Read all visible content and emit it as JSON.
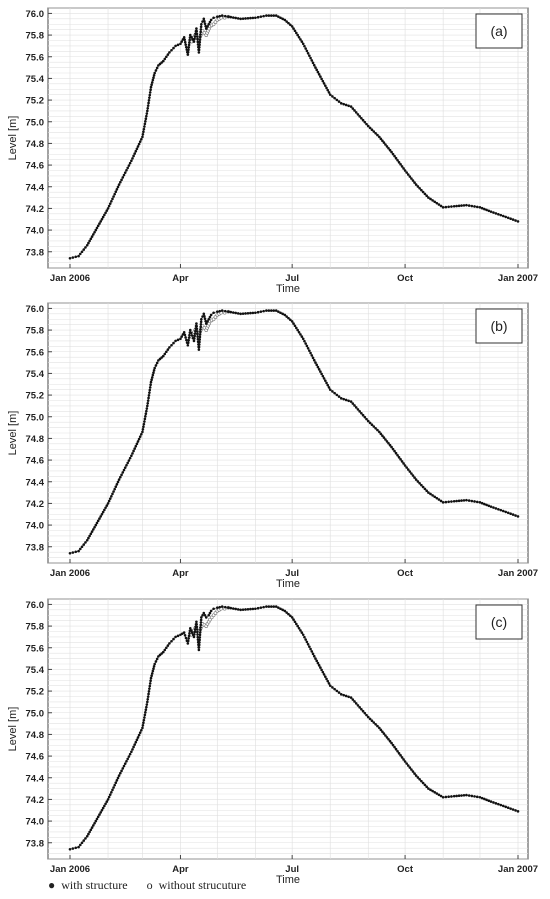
{
  "chart_data": [
    {
      "type": "scatter",
      "panel_label": "(a)",
      "xlabel": "Time",
      "ylabel": "Level [m]",
      "ylim": [
        73.65,
        76.05
      ],
      "xlim": [
        "2006-01-01",
        "2007-01-01"
      ],
      "x_ticks": [
        {
          "date": "2006-01-01",
          "label": "Jan 2006"
        },
        {
          "date": "2006-04-01",
          "label": "Apr"
        },
        {
          "date": "2006-07-01",
          "label": "Jul"
        },
        {
          "date": "2006-10-01",
          "label": "Oct"
        },
        {
          "date": "2007-01-01",
          "label": "Jan 2007"
        }
      ],
      "y_ticks": [
        "73.8",
        "74.0",
        "74.2",
        "74.4",
        "74.6",
        "74.8",
        "75.0",
        "75.2",
        "75.4",
        "75.6",
        "75.8",
        "76.0"
      ],
      "grid": true,
      "series": [
        {
          "name": "with structure",
          "marker": "filled",
          "x": [
            "2006-01-01",
            "2006-01-08",
            "2006-01-15",
            "2006-01-22",
            "2006-02-01",
            "2006-02-10",
            "2006-02-20",
            "2006-03-01",
            "2006-03-05",
            "2006-03-08",
            "2006-03-11",
            "2006-03-14",
            "2006-03-18",
            "2006-03-23",
            "2006-03-28",
            "2006-04-01",
            "2006-04-04",
            "2006-04-07",
            "2006-04-09",
            "2006-04-12",
            "2006-04-14",
            "2006-04-16",
            "2006-04-18",
            "2006-04-20",
            "2006-04-22",
            "2006-04-24",
            "2006-04-26",
            "2006-04-28",
            "2006-05-01",
            "2006-05-05",
            "2006-05-10",
            "2006-05-20",
            "2006-06-01",
            "2006-06-10",
            "2006-06-18",
            "2006-06-25",
            "2006-07-01",
            "2006-07-10",
            "2006-07-20",
            "2006-08-01",
            "2006-08-10",
            "2006-08-18",
            "2006-08-25",
            "2006-09-01",
            "2006-09-10",
            "2006-09-20",
            "2006-10-01",
            "2006-10-10",
            "2006-10-20",
            "2006-11-01",
            "2006-11-10",
            "2006-11-20",
            "2006-12-01",
            "2006-12-10",
            "2006-12-20",
            "2007-01-01"
          ],
          "y": [
            73.74,
            73.76,
            73.86,
            74.0,
            74.2,
            74.42,
            74.64,
            74.86,
            75.1,
            75.32,
            75.45,
            75.52,
            75.56,
            75.64,
            75.7,
            75.72,
            75.78,
            75.62,
            75.8,
            75.74,
            75.86,
            75.64,
            75.9,
            75.95,
            75.86,
            75.9,
            75.94,
            75.96,
            75.97,
            75.98,
            75.97,
            75.95,
            75.96,
            75.98,
            75.98,
            75.94,
            75.88,
            75.72,
            75.5,
            75.25,
            75.17,
            75.14,
            75.05,
            74.96,
            74.86,
            74.72,
            74.55,
            74.42,
            74.3,
            74.21,
            74.22,
            74.23,
            74.21,
            74.17,
            74.13,
            74.08
          ]
        },
        {
          "name": "without strucuture",
          "marker": "open",
          "x": [
            "2006-04-10",
            "2006-04-13",
            "2006-04-16",
            "2006-04-19",
            "2006-04-22",
            "2006-04-25",
            "2006-04-28",
            "2006-05-01",
            "2006-05-04",
            "2006-05-07",
            "2006-05-10"
          ],
          "y": [
            75.74,
            75.8,
            75.76,
            75.84,
            75.8,
            75.88,
            75.9,
            75.94,
            75.96,
            75.96,
            75.97
          ]
        }
      ]
    },
    {
      "type": "scatter",
      "panel_label": "(b)",
      "xlabel": "Time",
      "ylabel": "Level [m]",
      "ylim": [
        73.65,
        76.05
      ],
      "xlim": [
        "2006-01-01",
        "2007-01-01"
      ],
      "x_ticks": [
        {
          "date": "2006-01-01",
          "label": "Jan 2006"
        },
        {
          "date": "2006-04-01",
          "label": "Apr"
        },
        {
          "date": "2006-07-01",
          "label": "Jul"
        },
        {
          "date": "2006-10-01",
          "label": "Oct"
        },
        {
          "date": "2007-01-01",
          "label": "Jan 2007"
        }
      ],
      "y_ticks": [
        "73.8",
        "74.0",
        "74.2",
        "74.4",
        "74.6",
        "74.8",
        "75.0",
        "75.2",
        "75.4",
        "75.6",
        "75.8",
        "76.0"
      ],
      "grid": true,
      "series": [
        {
          "name": "with structure",
          "marker": "filled",
          "x": [
            "2006-01-01",
            "2006-01-08",
            "2006-01-15",
            "2006-01-22",
            "2006-02-01",
            "2006-02-10",
            "2006-02-20",
            "2006-03-01",
            "2006-03-05",
            "2006-03-08",
            "2006-03-11",
            "2006-03-14",
            "2006-03-18",
            "2006-03-23",
            "2006-03-28",
            "2006-04-01",
            "2006-04-04",
            "2006-04-07",
            "2006-04-09",
            "2006-04-12",
            "2006-04-14",
            "2006-04-16",
            "2006-04-18",
            "2006-04-20",
            "2006-04-22",
            "2006-04-24",
            "2006-04-26",
            "2006-04-28",
            "2006-05-01",
            "2006-05-05",
            "2006-05-10",
            "2006-05-20",
            "2006-06-01",
            "2006-06-10",
            "2006-06-18",
            "2006-06-25",
            "2006-07-01",
            "2006-07-10",
            "2006-07-20",
            "2006-08-01",
            "2006-08-10",
            "2006-08-18",
            "2006-08-25",
            "2006-09-01",
            "2006-09-10",
            "2006-09-20",
            "2006-10-01",
            "2006-10-10",
            "2006-10-20",
            "2006-11-01",
            "2006-11-10",
            "2006-11-20",
            "2006-12-01",
            "2006-12-10",
            "2006-12-20",
            "2007-01-01"
          ],
          "y": [
            73.74,
            73.76,
            73.86,
            74.0,
            74.2,
            74.42,
            74.64,
            74.86,
            75.1,
            75.32,
            75.45,
            75.52,
            75.56,
            75.64,
            75.7,
            75.72,
            75.78,
            75.66,
            75.8,
            75.7,
            75.86,
            75.62,
            75.9,
            75.95,
            75.86,
            75.9,
            75.94,
            75.96,
            75.97,
            75.98,
            75.97,
            75.95,
            75.96,
            75.98,
            75.98,
            75.94,
            75.88,
            75.72,
            75.5,
            75.25,
            75.17,
            75.14,
            75.05,
            74.96,
            74.86,
            74.72,
            74.55,
            74.42,
            74.3,
            74.21,
            74.22,
            74.23,
            74.21,
            74.17,
            74.13,
            74.08
          ]
        },
        {
          "name": "without strucuture",
          "marker": "open",
          "x": [
            "2006-04-10",
            "2006-04-13",
            "2006-04-16",
            "2006-04-19",
            "2006-04-22",
            "2006-04-25",
            "2006-04-28",
            "2006-05-01",
            "2006-05-04",
            "2006-05-07",
            "2006-05-10"
          ],
          "y": [
            75.74,
            75.8,
            75.76,
            75.84,
            75.8,
            75.88,
            75.9,
            75.94,
            75.96,
            75.96,
            75.97
          ]
        }
      ]
    },
    {
      "type": "scatter",
      "panel_label": "(c)",
      "xlabel": "Time",
      "ylabel": "Level [m]",
      "ylim": [
        73.65,
        76.05
      ],
      "xlim": [
        "2006-01-01",
        "2007-01-01"
      ],
      "x_ticks": [
        {
          "date": "2006-01-01",
          "label": "Jan 2006"
        },
        {
          "date": "2006-04-01",
          "label": "Apr"
        },
        {
          "date": "2006-07-01",
          "label": "Jul"
        },
        {
          "date": "2006-10-01",
          "label": "Oct"
        },
        {
          "date": "2007-01-01",
          "label": "Jan 2007"
        }
      ],
      "y_ticks": [
        "73.8",
        "74.0",
        "74.2",
        "74.4",
        "74.6",
        "74.8",
        "75.0",
        "75.2",
        "75.4",
        "75.6",
        "75.8",
        "76.0"
      ],
      "grid": true,
      "series": [
        {
          "name": "with structure",
          "marker": "filled",
          "x": [
            "2006-01-01",
            "2006-01-08",
            "2006-01-15",
            "2006-01-22",
            "2006-02-01",
            "2006-02-10",
            "2006-02-20",
            "2006-03-01",
            "2006-03-05",
            "2006-03-08",
            "2006-03-11",
            "2006-03-14",
            "2006-03-18",
            "2006-03-23",
            "2006-03-28",
            "2006-04-01",
            "2006-04-04",
            "2006-04-07",
            "2006-04-09",
            "2006-04-12",
            "2006-04-14",
            "2006-04-16",
            "2006-04-18",
            "2006-04-20",
            "2006-04-22",
            "2006-04-24",
            "2006-04-26",
            "2006-04-28",
            "2006-05-01",
            "2006-05-05",
            "2006-05-10",
            "2006-05-20",
            "2006-06-01",
            "2006-06-10",
            "2006-06-18",
            "2006-06-25",
            "2006-07-01",
            "2006-07-10",
            "2006-07-20",
            "2006-08-01",
            "2006-08-10",
            "2006-08-18",
            "2006-08-25",
            "2006-09-01",
            "2006-09-10",
            "2006-09-20",
            "2006-10-01",
            "2006-10-10",
            "2006-10-20",
            "2006-11-01",
            "2006-11-10",
            "2006-11-20",
            "2006-12-01",
            "2006-12-10",
            "2006-12-20",
            "2007-01-01"
          ],
          "y": [
            73.74,
            73.76,
            73.86,
            74.0,
            74.2,
            74.42,
            74.64,
            74.86,
            75.1,
            75.32,
            75.45,
            75.52,
            75.56,
            75.64,
            75.7,
            75.72,
            75.74,
            75.64,
            75.78,
            75.7,
            75.84,
            75.58,
            75.88,
            75.92,
            75.88,
            75.9,
            75.94,
            75.96,
            75.97,
            75.98,
            75.97,
            75.95,
            75.96,
            75.98,
            75.98,
            75.94,
            75.88,
            75.72,
            75.5,
            75.25,
            75.17,
            75.14,
            75.05,
            74.96,
            74.86,
            74.72,
            74.55,
            74.42,
            74.3,
            74.22,
            74.23,
            74.24,
            74.22,
            74.18,
            74.14,
            74.09
          ]
        },
        {
          "name": "without strucuture",
          "marker": "open",
          "x": [
            "2006-04-10",
            "2006-04-13",
            "2006-04-16",
            "2006-04-19",
            "2006-04-22",
            "2006-04-25",
            "2006-04-28",
            "2006-05-01",
            "2006-05-04",
            "2006-05-07",
            "2006-05-10"
          ],
          "y": [
            75.72,
            75.78,
            75.74,
            75.82,
            75.8,
            75.86,
            75.9,
            75.94,
            75.96,
            75.96,
            75.97
          ]
        }
      ]
    }
  ],
  "legend": {
    "with_marker": "●",
    "with_label": "with structure",
    "without_marker": "o",
    "without_label": "without strucuture"
  }
}
